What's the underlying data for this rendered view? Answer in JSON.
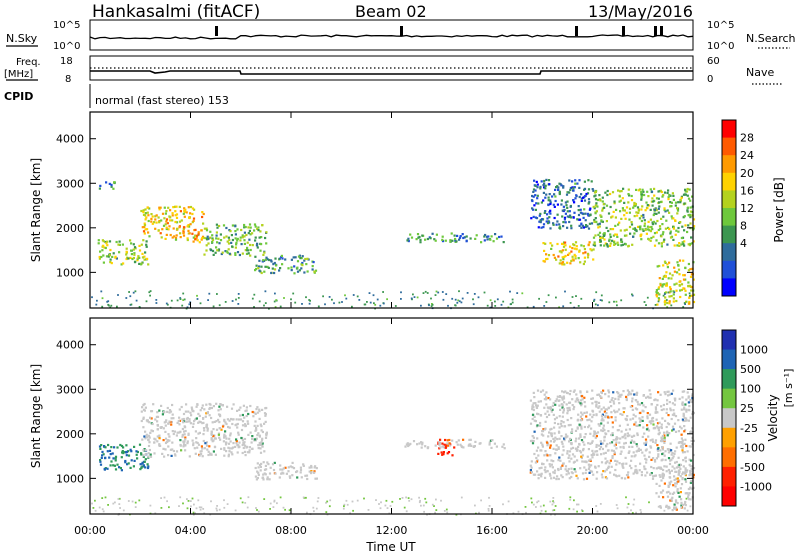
{
  "header": {
    "station": "Hankasalmi (fitACF)",
    "beam": "Beam 02",
    "date": "13/May/2016"
  },
  "strips": {
    "nsky_label": "N.Sky",
    "nsky_ticks": [
      "10^5",
      "10^0"
    ],
    "nsearch_label": "N.Search",
    "nsearch_ticks": [
      "10^5",
      "10^0"
    ],
    "freq_label": "Freq.",
    "freq_unit": "[MHz]",
    "freq_ticks": [
      "18",
      "8"
    ],
    "nave_label": "Nave",
    "nave_ticks": [
      "60",
      "0"
    ],
    "cpid_label": "CPID",
    "cpid_text": "normal (fast stereo) 153"
  },
  "axes": {
    "ylabel": "Slant Range [km]",
    "xlabel": "Time UT",
    "y_ticks": [
      "4000",
      "3000",
      "2000",
      "1000"
    ],
    "x_ticks": [
      "00:00",
      "04:00",
      "08:00",
      "12:00",
      "16:00",
      "20:00",
      "00:00"
    ]
  },
  "power_scale": {
    "label": "Power [dB]",
    "ticks": [
      "28",
      "24",
      "20",
      "16",
      "12",
      "8",
      "4"
    ],
    "colors": [
      "#ff0000",
      "#ff5a00",
      "#ff9a00",
      "#ffd200",
      "#b4d21e",
      "#6ec83c",
      "#3c9650",
      "#2f6c9c",
      "#2050d8",
      "#0000ff"
    ]
  },
  "velocity_scale": {
    "label": "Velocity",
    "unit": "[m s⁻¹]",
    "ticks": [
      "1000",
      "500",
      "100",
      "25",
      "-25",
      "-100",
      "-500",
      "-1000"
    ],
    "colors": [
      "#2030b0",
      "#1e64b4",
      "#2f9a5a",
      "#74c640",
      "#c8c8c8",
      "#ffa000",
      "#ff6e00",
      "#ff2000",
      "#ff0000"
    ]
  },
  "chart_data": {
    "type": "heatmap",
    "x_unit": "hours UT",
    "y_unit": "km",
    "xlim": [
      0,
      24
    ],
    "ylim": [
      200,
      4600
    ],
    "x_ticks": [
      0,
      4,
      8,
      12,
      16,
      20,
      24
    ],
    "y_ticks": [
      1000,
      2000,
      3000,
      4000
    ],
    "power_range": [
      0,
      30
    ],
    "velocity_range": [
      -1000,
      1000
    ],
    "power_echo_regions": [
      {
        "t": [
          0.2,
          1.0
        ],
        "r": [
          2900,
          3050
        ],
        "power": 8
      },
      {
        "t": [
          0.3,
          2.3
        ],
        "r": [
          1200,
          1750
        ],
        "power": 14
      },
      {
        "t": [
          2.0,
          4.5
        ],
        "r": [
          1700,
          2500
        ],
        "power": 20
      },
      {
        "t": [
          4.5,
          7.0
        ],
        "r": [
          1400,
          2100
        ],
        "power": 12
      },
      {
        "t": [
          6.5,
          9.0
        ],
        "r": [
          1000,
          1400
        ],
        "power": 10
      },
      {
        "t": [
          12.5,
          16.5
        ],
        "r": [
          1700,
          1900
        ],
        "power": 8
      },
      {
        "t": [
          17.5,
          20.0
        ],
        "r": [
          2000,
          3100
        ],
        "power": 6
      },
      {
        "t": [
          18.0,
          20.0
        ],
        "r": [
          1200,
          1700
        ],
        "power": 20
      },
      {
        "t": [
          20.0,
          24.0
        ],
        "r": [
          1600,
          2900
        ],
        "power": 14
      },
      {
        "t": [
          22.5,
          24.0
        ],
        "r": [
          300,
          1300
        ],
        "power": 18
      }
    ],
    "velocity_echo_regions": [
      {
        "t": [
          0.3,
          2.3
        ],
        "r": [
          1200,
          1800
        ],
        "velocity": 300
      },
      {
        "t": [
          2.0,
          7.0
        ],
        "r": [
          1500,
          2700
        ],
        "velocity": 0
      },
      {
        "t": [
          6.5,
          9.0
        ],
        "r": [
          1000,
          1400
        ],
        "velocity": 0
      },
      {
        "t": [
          13.8,
          14.5
        ],
        "r": [
          1500,
          1900
        ],
        "velocity": -700
      },
      {
        "t": [
          12.5,
          16.5
        ],
        "r": [
          1700,
          1900
        ],
        "velocity": 0
      },
      {
        "t": [
          17.5,
          24.0
        ],
        "r": [
          1000,
          3000
        ],
        "velocity": 0
      },
      {
        "t": [
          22.5,
          24.0
        ],
        "r": [
          300,
          1300
        ],
        "velocity": 0
      }
    ],
    "ground_scatter_range": [
      200,
      600
    ],
    "nsky_log": 5,
    "frequency_mhz": [
      10,
      12
    ],
    "nave": [
      20,
      50
    ]
  }
}
